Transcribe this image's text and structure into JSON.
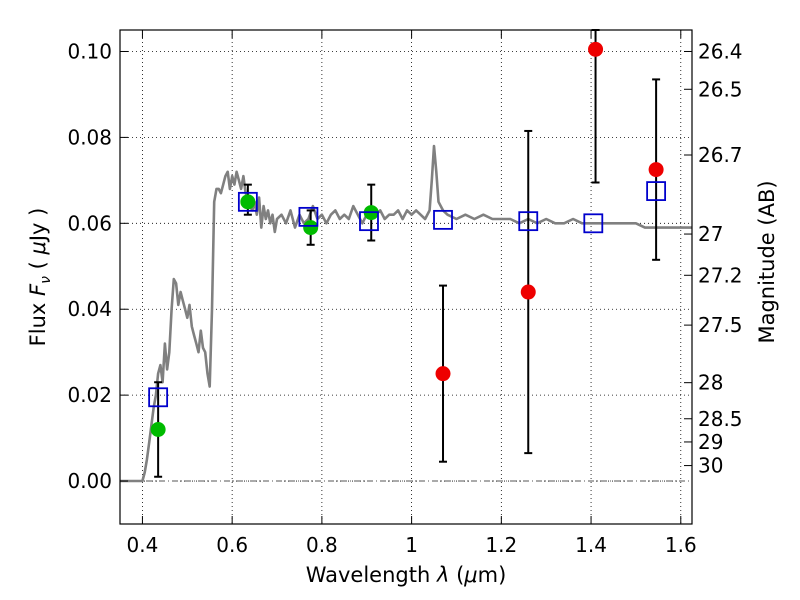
{
  "chart_data": {
    "type": "scatter",
    "title": "",
    "xlabel": "Wavelength  λ (μm)",
    "ylabel": "Flux  F_ν  ( μJy )",
    "y2label": "Magnitude (AB)",
    "xlim": [
      0.35,
      1.625
    ],
    "ylim": [
      -0.01,
      0.105
    ],
    "x_ticks": [
      0.4,
      0.6,
      0.8,
      1.0,
      1.2,
      1.4,
      1.6
    ],
    "x_tick_labels": [
      "0.4",
      "0.6",
      "0.8",
      "1",
      "1.2",
      "1.4",
      "1.6"
    ],
    "y_ticks": [
      0.0,
      0.02,
      0.04,
      0.06,
      0.08,
      0.1
    ],
    "y_tick_labels": [
      "0.00",
      "0.02",
      "0.04",
      "0.06",
      "0.08",
      "0.10"
    ],
    "mag_ticks": [
      {
        "label": "26.4",
        "flux": 0.1
      },
      {
        "label": "26.5",
        "flux": 0.0912
      },
      {
        "label": "26.7",
        "flux": 0.0759
      },
      {
        "label": "27",
        "flux": 0.0575
      },
      {
        "label": "27.2",
        "flux": 0.0479
      },
      {
        "label": "27.5",
        "flux": 0.0363
      },
      {
        "label": "28",
        "flux": 0.0229
      },
      {
        "label": "28.5",
        "flux": 0.0145
      },
      {
        "label": "29",
        "flux": 0.0091
      },
      {
        "label": "30",
        "flux": 0.0036
      }
    ],
    "grid": true,
    "grid_style": "dotted",
    "reference_line": {
      "y": 0.0,
      "style": "dash-dot",
      "color": "#555555"
    },
    "colors": {
      "model": "#808080",
      "green": "#00bb00",
      "red": "#ee0000",
      "box": "#0000cc",
      "errorbar": "#000000"
    },
    "series": [
      {
        "kind": "line",
        "x": [
          0.35,
          0.38,
          0.4,
          0.405,
          0.41,
          0.415,
          0.42,
          0.425,
          0.43,
          0.435,
          0.44,
          0.445,
          0.45,
          0.455,
          0.46,
          0.465,
          0.47,
          0.475,
          0.48,
          0.485,
          0.49,
          0.495,
          0.5,
          0.505,
          0.51,
          0.515,
          0.52,
          0.525,
          0.53,
          0.535,
          0.54,
          0.545,
          0.55,
          0.555,
          0.56,
          0.565,
          0.57,
          0.575,
          0.58,
          0.585,
          0.59,
          0.595,
          0.6,
          0.605,
          0.61,
          0.615,
          0.62,
          0.625,
          0.63,
          0.635,
          0.64,
          0.645,
          0.65,
          0.655,
          0.66,
          0.665,
          0.67,
          0.675,
          0.68,
          0.685,
          0.69,
          0.695,
          0.7,
          0.71,
          0.72,
          0.73,
          0.74,
          0.75,
          0.76,
          0.77,
          0.78,
          0.79,
          0.8,
          0.81,
          0.82,
          0.83,
          0.84,
          0.85,
          0.86,
          0.87,
          0.88,
          0.89,
          0.9,
          0.91,
          0.92,
          0.93,
          0.94,
          0.95,
          0.96,
          0.97,
          0.98,
          0.99,
          1.0,
          1.01,
          1.02,
          1.03,
          1.04,
          1.045,
          1.05,
          1.055,
          1.06,
          1.07,
          1.08,
          1.1,
          1.12,
          1.14,
          1.16,
          1.18,
          1.2,
          1.22,
          1.24,
          1.26,
          1.28,
          1.3,
          1.32,
          1.34,
          1.36,
          1.38,
          1.4,
          1.42,
          1.44,
          1.46,
          1.48,
          1.5,
          1.52,
          1.54,
          1.56,
          1.58,
          1.6,
          1.625
        ],
        "values": [
          0.0,
          0.0,
          0.0,
          0.002,
          0.005,
          0.009,
          0.013,
          0.017,
          0.02,
          0.025,
          0.027,
          0.023,
          0.032,
          0.026,
          0.03,
          0.04,
          0.047,
          0.046,
          0.041,
          0.044,
          0.042,
          0.04,
          0.038,
          0.041,
          0.036,
          0.034,
          0.032,
          0.03,
          0.035,
          0.031,
          0.03,
          0.025,
          0.022,
          0.04,
          0.065,
          0.068,
          0.068,
          0.067,
          0.069,
          0.071,
          0.072,
          0.068,
          0.071,
          0.069,
          0.072,
          0.07,
          0.068,
          0.071,
          0.067,
          0.066,
          0.064,
          0.063,
          0.065,
          0.062,
          0.066,
          0.059,
          0.064,
          0.061,
          0.063,
          0.06,
          0.062,
          0.058,
          0.061,
          0.062,
          0.06,
          0.063,
          0.059,
          0.062,
          0.06,
          0.061,
          0.064,
          0.061,
          0.062,
          0.06,
          0.062,
          0.063,
          0.061,
          0.062,
          0.061,
          0.064,
          0.062,
          0.06,
          0.062,
          0.061,
          0.062,
          0.063,
          0.061,
          0.062,
          0.062,
          0.063,
          0.061,
          0.063,
          0.062,
          0.063,
          0.062,
          0.061,
          0.063,
          0.07,
          0.078,
          0.072,
          0.065,
          0.063,
          0.062,
          0.061,
          0.062,
          0.061,
          0.062,
          0.061,
          0.061,
          0.061,
          0.06,
          0.061,
          0.06,
          0.061,
          0.06,
          0.06,
          0.061,
          0.06,
          0.06,
          0.06,
          0.06,
          0.06,
          0.06,
          0.06,
          0.059,
          0.059,
          0.059,
          0.059,
          0.059,
          0.059
        ]
      },
      {
        "kind": "points",
        "marker": "circle",
        "color": "green",
        "x": [
          0.435,
          0.635,
          0.775,
          0.91
        ],
        "values": [
          0.012,
          0.065,
          0.059,
          0.0625
        ],
        "err_low": [
          0.001,
          0.062,
          0.055,
          0.056
        ],
        "err_high": [
          0.023,
          0.069,
          0.063,
          0.069
        ]
      },
      {
        "kind": "points",
        "marker": "circle",
        "color": "red",
        "x": [
          1.07,
          1.26,
          1.41,
          1.545
        ],
        "values": [
          0.025,
          0.044,
          0.1005,
          0.0725
        ],
        "err_low": [
          0.0045,
          0.0065,
          0.0695,
          0.0515
        ],
        "err_high": [
          0.0455,
          0.0815,
          0.105,
          0.0935
        ]
      },
      {
        "kind": "points",
        "marker": "square",
        "color": "box",
        "x": [
          0.435,
          0.635,
          0.77,
          0.905,
          1.07,
          1.26,
          1.405,
          1.545
        ],
        "values": [
          0.0195,
          0.065,
          0.0615,
          0.0605,
          0.0608,
          0.0605,
          0.06,
          0.0675
        ]
      }
    ]
  }
}
